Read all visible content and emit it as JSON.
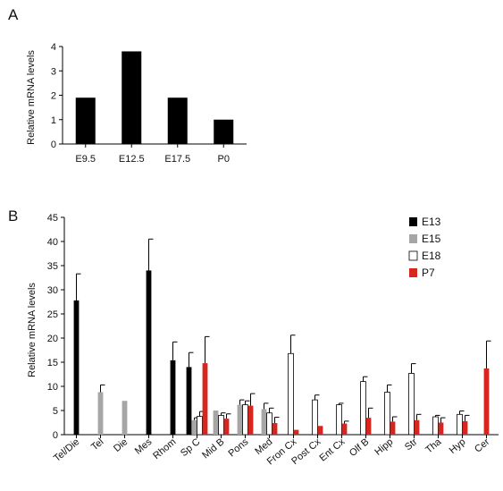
{
  "panels": [
    {
      "letter": "A"
    },
    {
      "letter": "B"
    }
  ],
  "chart_data": [
    {
      "type": "bar",
      "panel": "A",
      "categories": [
        "E9.5",
        "E12.5",
        "E17.5",
        "P0"
      ],
      "values": [
        1.9,
        3.8,
        1.9,
        1.0
      ],
      "xlabel": "",
      "ylabel": "Relative mRNA levels",
      "ylim": [
        0,
        4
      ],
      "yticks": [
        0,
        1,
        2,
        3,
        4
      ],
      "colors": [
        "#000000"
      ],
      "grid": false
    },
    {
      "type": "bar",
      "panel": "B",
      "categories": [
        "Tel/Die",
        "Tel",
        "Die",
        "Mes",
        "Rhom",
        "Sp C",
        "Mid B",
        "Pons",
        "Med",
        "Fron Cx",
        "Post Cx",
        "Ent Cx",
        "Olf B",
        "Hipp",
        "Str",
        "Tha",
        "Hyp",
        "Cer"
      ],
      "series": [
        {
          "name": "E13",
          "color": "#000000",
          "values": [
            27.8,
            null,
            null,
            34.0,
            15.4,
            14.0,
            null,
            null,
            null,
            null,
            null,
            null,
            null,
            null,
            null,
            null,
            null,
            null
          ],
          "errors": [
            5.5,
            null,
            null,
            6.5,
            3.8,
            3.0,
            null,
            null,
            null,
            null,
            null,
            null,
            null,
            null,
            null,
            null,
            null,
            null
          ]
        },
        {
          "name": "E15",
          "color": "#a6a6a6",
          "values": [
            null,
            8.8,
            7.0,
            null,
            null,
            3.0,
            5.0,
            6.2,
            5.3,
            null,
            null,
            null,
            null,
            null,
            null,
            null,
            null,
            null
          ],
          "errors": [
            null,
            1.5,
            null,
            null,
            null,
            0.5,
            null,
            1.0,
            1.2,
            null,
            null,
            null,
            null,
            null,
            null,
            null,
            null,
            null
          ]
        },
        {
          "name": "E18",
          "color": "#ffffff",
          "values": [
            null,
            null,
            null,
            null,
            null,
            3.8,
            4.0,
            6.2,
            4.5,
            16.8,
            7.2,
            6.2,
            11.0,
            8.8,
            12.7,
            3.7,
            4.2,
            null
          ],
          "errors": [
            null,
            null,
            null,
            null,
            null,
            1.0,
            0.5,
            0.8,
            1.0,
            3.8,
            1.0,
            0.3,
            1.0,
            1.5,
            2.0,
            0.3,
            0.7,
            null
          ],
          "stroke": "#000000"
        },
        {
          "name": "P7",
          "color": "#d8261f",
          "values": [
            null,
            null,
            null,
            null,
            null,
            14.8,
            3.3,
            6.0,
            2.4,
            1.0,
            1.8,
            2.3,
            3.5,
            2.7,
            3.0,
            2.5,
            2.8,
            13.7
          ],
          "errors": [
            null,
            null,
            null,
            null,
            null,
            5.5,
            1.0,
            2.5,
            1.2,
            null,
            null,
            0.5,
            2.0,
            1.0,
            1.2,
            1.0,
            1.2,
            5.7
          ]
        }
      ],
      "xlabel": "",
      "ylabel": "Relative mRNA levels",
      "ylim": [
        0,
        45
      ],
      "yticks": [
        0,
        5,
        10,
        15,
        20,
        25,
        30,
        35,
        40,
        45
      ],
      "legend": {
        "placement": "top-right",
        "entries": [
          "E13",
          "E15",
          "E18",
          "P7"
        ]
      },
      "grid": false
    }
  ]
}
